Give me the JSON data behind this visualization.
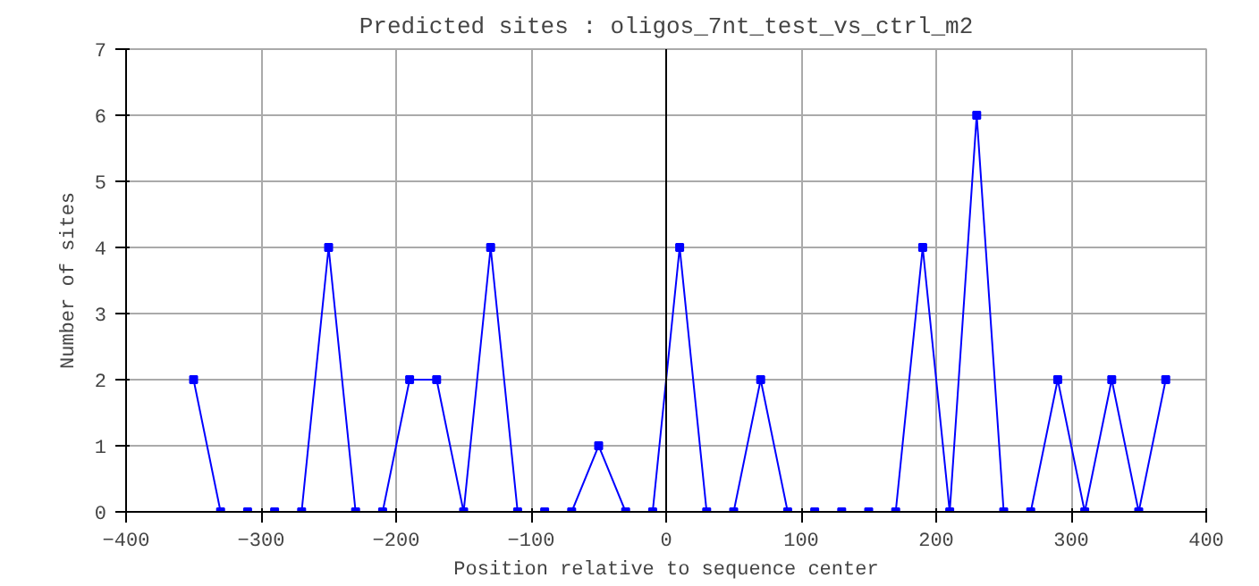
{
  "chart_data": {
    "type": "line",
    "title": "Predicted sites : oligos_7nt_test_vs_ctrl_m2",
    "xlabel": "Position relative to sequence center",
    "ylabel": "Number of sites",
    "x": [
      -350,
      -330,
      -310,
      -290,
      -270,
      -250,
      -230,
      -210,
      -190,
      -170,
      -150,
      -130,
      -110,
      -90,
      -70,
      -50,
      -30,
      -10,
      10,
      30,
      50,
      70,
      90,
      110,
      130,
      150,
      170,
      190,
      210,
      230,
      250,
      270,
      290,
      310,
      330,
      350,
      370
    ],
    "series": [
      {
        "color": "#0000ff",
        "values": [
          2,
          0,
          0,
          0,
          0,
          4,
          0,
          0,
          2,
          2,
          0,
          4,
          0,
          0,
          0,
          1,
          0,
          0,
          4,
          0,
          0,
          2,
          0,
          0,
          0,
          0,
          0,
          4,
          0,
          6,
          0,
          0,
          2,
          0,
          2,
          0,
          2
        ]
      }
    ],
    "xlim": [
      -400,
      400
    ],
    "xticks": [
      -400,
      -300,
      -200,
      -100,
      0,
      100,
      200,
      300,
      400
    ],
    "ylim": [
      0,
      7
    ],
    "yticks": [
      0,
      1,
      2,
      3,
      4,
      5,
      6,
      7
    ],
    "ref_lines": [
      {
        "axis": "x",
        "value": 0,
        "color": "#000000"
      }
    ],
    "grid": true,
    "marker": "square",
    "line_style": "solid"
  }
}
